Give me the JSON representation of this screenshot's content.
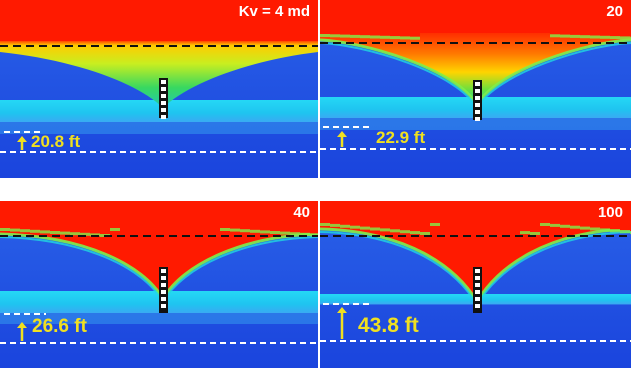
{
  "colors": {
    "red": "#ff1a00",
    "blue_deep": "#1a44dd",
    "blue_mid": "#2a62e8",
    "cyan": "#25d8f5",
    "cyan_glow": "#3aaaf2",
    "annotation_yellow": "#f0e020",
    "dashed_black": "#111111",
    "dashed_white": "#ffffff"
  },
  "panels": [
    {
      "kv_label": "Kv = 4 md",
      "distance_label": "20.8 ft"
    },
    {
      "kv_label": "20",
      "distance_label": "22.9 ft"
    },
    {
      "kv_label": "40",
      "distance_label": "26.6 ft"
    },
    {
      "kv_label": "100",
      "distance_label": "43.8 ft"
    }
  ]
}
